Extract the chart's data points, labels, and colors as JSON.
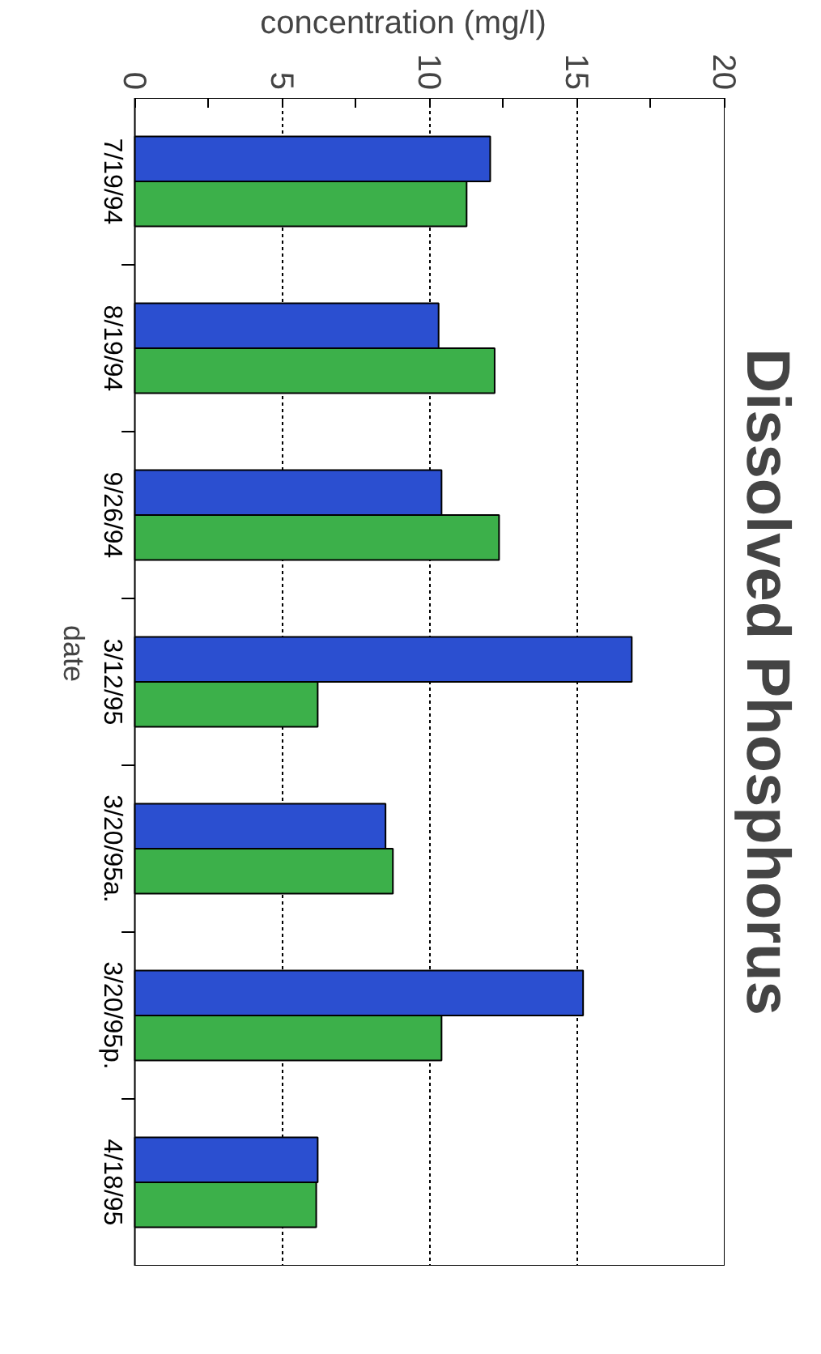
{
  "chart_data": {
    "type": "bar",
    "orientation": "horizontal",
    "title": "Dissolved Phosphorus",
    "xlabel": "concentration (mg/l)",
    "ylabel": "date",
    "categories": [
      "7/19/94",
      "8/19/94",
      "9/26/94",
      "3/12/95",
      "3/20/95a.",
      "3/20/95p.",
      "4/18/95"
    ],
    "series": [
      {
        "color": "#2b4fd0",
        "values": [
          12.05,
          10.3,
          10.4,
          16.85,
          8.5,
          15.2,
          6.2
        ]
      },
      {
        "color": "#3cb04a",
        "values": [
          11.25,
          12.2,
          12.35,
          6.2,
          8.75,
          10.4,
          6.15
        ]
      }
    ],
    "xlim": [
      0,
      20
    ],
    "xticks": [
      0,
      {
        "value": 2.5,
        "label": null
      },
      5,
      {
        "value": 7.5,
        "label": null
      },
      10,
      {
        "value": 12.5,
        "label": null
      },
      15,
      {
        "value": 17.5,
        "label": null
      },
      20
    ],
    "grid": "x"
  }
}
